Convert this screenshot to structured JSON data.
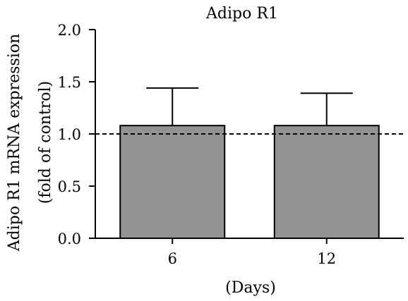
{
  "chart_data": {
    "type": "bar",
    "title": "Adipo R1",
    "xlabel": "(Days)",
    "ylabel_line1": "Adipo R1 mRNA expression",
    "ylabel_line2": "(fold of control)",
    "categories": [
      "6",
      "12"
    ],
    "values": [
      1.08,
      1.08
    ],
    "error_upper": [
      0.36,
      0.31
    ],
    "ylim": [
      0.0,
      2.0
    ],
    "yticks": [
      "0.0",
      "0.5",
      "1.0",
      "1.5",
      "2.0"
    ],
    "reference_line": 1.0,
    "grid": false,
    "legend": "none",
    "bar_color": "#939393",
    "bar_edge_color": "#000000"
  }
}
